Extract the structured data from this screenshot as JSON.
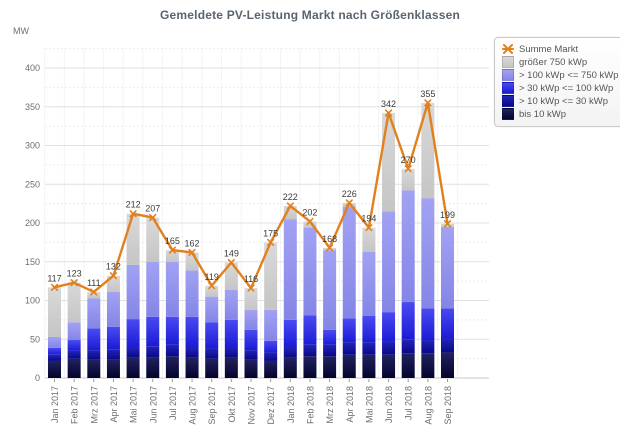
{
  "title": "Gemeldete PV-Leistung Markt nach Größenklassen",
  "colors": {
    "line": "#e0811d",
    "grid_major": "#e0e0e0",
    "grid_minor": "#ececec",
    "grid_vertical": "#f3f3f3",
    "baseline": "#c9c9c9",
    "tick_text": "#6e6e6e",
    "data_label": "#3b3b3b",
    "title_text": "#5a646e",
    "legend_text": "#555555"
  },
  "chart_data": {
    "type": "bar",
    "stacked": true,
    "title": "Gemeldete PV-Leistung Markt nach Größenklassen",
    "xlabel": "",
    "ylabel": "MW",
    "ylim": [
      0,
      400
    ],
    "y_tick_step": 50,
    "y_minor_tick_step": 25,
    "grid": true,
    "data_labels_shown": true,
    "legend_position": "top-right",
    "categories": [
      "Jan 2017",
      "Feb 2017",
      "Mrz 2017",
      "Apr 2017",
      "Mai 2017",
      "Jun 2017",
      "Jul 2017",
      "Aug 2017",
      "Sep 2017",
      "Okt 2017",
      "Nov 2017",
      "Dez 2017",
      "Jan 2018",
      "Feb 2018",
      "Mrz 2018",
      "Apr 2018",
      "Mai 2018",
      "Jun 2018",
      "Jul 2018",
      "Aug 2018",
      "Sep 2018"
    ],
    "series": [
      {
        "name": "bis 10 kWp",
        "color": "#03032c",
        "color_top": "#222260",
        "values": [
          22,
          25,
          24,
          24,
          26,
          27,
          28,
          26,
          25,
          26,
          24,
          22,
          26,
          28,
          28,
          30,
          30,
          30,
          32,
          32,
          33
        ]
      },
      {
        "name": "> 10 kWp <= 30 kWp",
        "color": "#08088a",
        "color_top": "#2424b6",
        "values": [
          8,
          10,
          12,
          13,
          14,
          14,
          15,
          14,
          13,
          14,
          12,
          11,
          14,
          15,
          15,
          16,
          16,
          17,
          18,
          17,
          18
        ]
      },
      {
        "name": "> 30 kWp <= 100 kWp",
        "color": "#1b1bd6",
        "color_top": "#4a4af2",
        "values": [
          9,
          14,
          28,
          29,
          36,
          38,
          36,
          39,
          34,
          35,
          26,
          15,
          35,
          38,
          19,
          31,
          34,
          38,
          48,
          41,
          39
        ]
      },
      {
        "name": "> 100 kWp <= 750 kWp",
        "color": "#8585e7",
        "color_top": "#a2a2f3",
        "values": [
          14,
          23,
          39,
          45,
          70,
          71,
          71,
          60,
          33,
          39,
          26,
          40,
          130,
          113,
          103,
          144,
          83,
          130,
          144,
          142,
          105
        ]
      },
      {
        "name": "größer 750 kWp",
        "color": "#c5c5c5",
        "color_top": "#d9d9d9",
        "values": [
          64,
          51,
          8,
          21,
          66,
          57,
          15,
          23,
          14,
          35,
          28,
          87,
          17,
          8,
          3,
          5,
          31,
          127,
          28,
          123,
          4
        ]
      }
    ],
    "line_series": {
      "name": "Summe Markt",
      "color": "#e0811d",
      "marker": "x-star",
      "values": [
        117,
        123,
        111,
        132,
        212,
        207,
        165,
        162,
        119,
        149,
        116,
        175,
        222,
        202,
        168,
        226,
        194,
        342,
        270,
        355,
        199
      ]
    },
    "legend_order": [
      "Summe Markt",
      "größer 750 kWp",
      "> 100 kWp <= 750 kWp",
      "> 30 kWp <= 100 kWp",
      "> 10 kWp <= 30 kWp",
      "bis 10 kWp"
    ]
  }
}
